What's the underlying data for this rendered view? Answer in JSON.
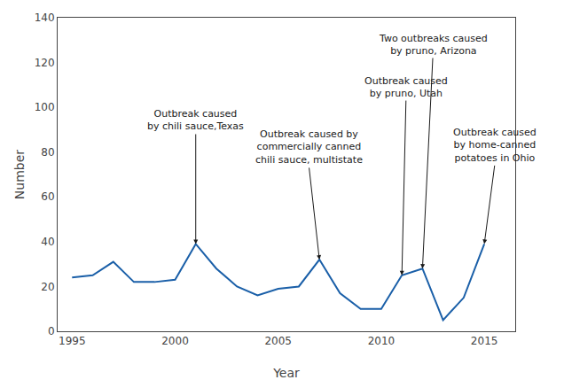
{
  "chart_data": {
    "type": "line",
    "x": [
      1995,
      1996,
      1997,
      1998,
      1999,
      2000,
      2001,
      2002,
      2003,
      2004,
      2005,
      2006,
      2007,
      2008,
      2009,
      2010,
      2011,
      2012,
      2013,
      2014,
      2015
    ],
    "values": [
      24,
      25,
      31,
      22,
      22,
      23,
      39,
      28,
      20,
      16,
      19,
      20,
      32,
      17,
      10,
      10,
      25,
      28,
      5,
      15,
      39
    ],
    "color": "#1a5fa8",
    "xlabel": "Year",
    "ylabel": "Number",
    "xlim": [
      1994.3,
      2016.5
    ],
    "ylim": [
      0,
      140
    ],
    "xticks": [
      1995,
      2000,
      2005,
      2010,
      2015
    ],
    "yticks": [
      0,
      20,
      40,
      60,
      80,
      100,
      120,
      140
    ],
    "grid": false,
    "annotations": [
      {
        "text": "Outbreak caused\nby chili sauce,Texas",
        "x": 2001,
        "y": 39,
        "text_x": 2001.0,
        "text_y": 88,
        "color": "#1a1a1a"
      },
      {
        "text": "Outbreak caused by\ncommercially canned\nchili sauce, multistate",
        "x": 2007,
        "y": 32,
        "text_x": 2006.5,
        "text_y": 73,
        "color": "#1a1a1a"
      },
      {
        "text": "Outbreak caused\nby pruno, Utah",
        "x": 2011,
        "y": 25,
        "text_x": 2011.2,
        "text_y": 103,
        "color": "#1a1a1a"
      },
      {
        "text": "Two outbreaks caused\nby pruno, Arizona",
        "x": 2012,
        "y": 28,
        "text_x": 2012.5,
        "text_y": 122,
        "color": "#1a1a1a"
      },
      {
        "text": "Outbreak caused\nby home-canned\npotatoes in Ohio",
        "x": 2015,
        "y": 39,
        "text_x": 2015.5,
        "text_y": 74,
        "color": "#1a1a1a"
      }
    ]
  }
}
